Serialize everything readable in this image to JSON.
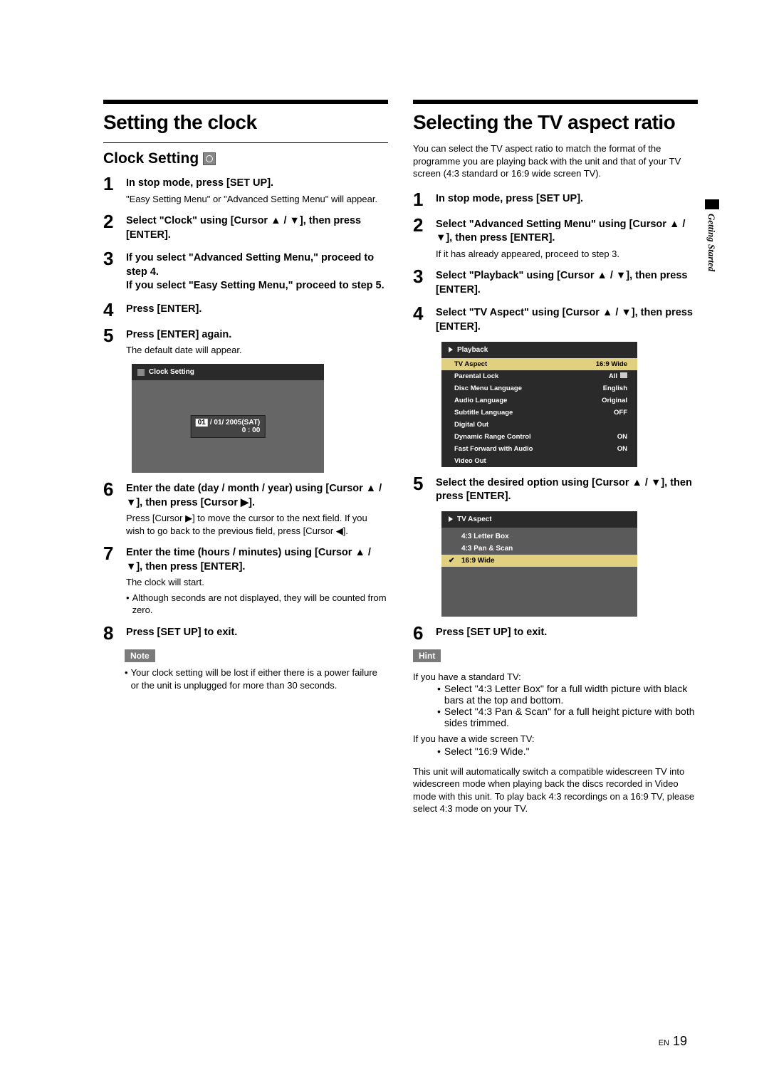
{
  "side_tab": "Getting Started",
  "left": {
    "title": "Setting the clock",
    "subtitle": "Clock Setting",
    "steps": [
      {
        "num": "1",
        "title": "In stop mode, press [SET UP].",
        "text": "\"Easy Setting Menu\" or \"Advanced Setting Menu\" will appear."
      },
      {
        "num": "2",
        "title": "Select \"Clock\" using [Cursor ▲ / ▼], then press [ENTER]."
      },
      {
        "num": "3",
        "title": "If you select \"Advanced Setting Menu,\" proceed to step 4.\nIf you select \"Easy Setting Menu,\" proceed to step 5."
      },
      {
        "num": "4",
        "title": "Press [ENTER]."
      },
      {
        "num": "5",
        "title": "Press [ENTER] again.",
        "text": "The default date will appear."
      },
      {
        "num": "6",
        "title": "Enter the date (day / month / year) using [Cursor ▲ / ▼], then press [Cursor ▶].",
        "text": "Press [Cursor ▶] to move the cursor to the next field. If you wish to go back to the previous field, press [Cursor ◀]."
      },
      {
        "num": "7",
        "title": "Enter the time (hours / minutes) using [Cursor ▲ / ▼], then press [ENTER].",
        "text": "The clock will start.",
        "bullets": [
          "Although seconds are not displayed, they will be counted from zero."
        ]
      },
      {
        "num": "8",
        "title": "Press [SET UP] to exit."
      }
    ],
    "clock_menu": {
      "title": "Clock Setting",
      "day": "01",
      "rest": "/ 01/ 2005(SAT)",
      "time": "0 : 00"
    },
    "note": {
      "tag": "Note",
      "bullets": [
        "Your clock setting will be lost if either there is a power failure or the unit is unplugged for more than 30 seconds."
      ]
    }
  },
  "right": {
    "title": "Selecting the TV aspect ratio",
    "intro": "You can select the TV aspect ratio to match the format of the programme you are playing back with the unit and that of your TV screen (4:3 standard or 16:9 wide screen TV).",
    "steps": [
      {
        "num": "1",
        "title": "In stop mode, press [SET UP]."
      },
      {
        "num": "2",
        "title": "Select \"Advanced Setting Menu\" using [Cursor ▲ / ▼], then press [ENTER].",
        "text": "If it has already appeared, proceed to step 3."
      },
      {
        "num": "3",
        "title": "Select \"Playback\" using [Cursor ▲ / ▼], then press [ENTER]."
      },
      {
        "num": "4",
        "title": "Select \"TV Aspect\" using [Cursor ▲ / ▼], then press [ENTER]."
      },
      {
        "num": "5",
        "title": "Select the desired option using [Cursor ▲ / ▼], then press [ENTER]."
      },
      {
        "num": "6",
        "title": "Press [SET UP] to exit."
      }
    ],
    "pb_menu": {
      "title": "Playback",
      "rows": [
        {
          "l": "TV Aspect",
          "r": "16:9 Wide",
          "hl": true
        },
        {
          "l": "Parental Lock",
          "r": "All",
          "lock": true
        },
        {
          "l": "Disc Menu Language",
          "r": "English"
        },
        {
          "l": "Audio Language",
          "r": "Original"
        },
        {
          "l": "Subtitle Language",
          "r": "OFF"
        },
        {
          "l": "Digital Out",
          "r": ""
        },
        {
          "l": "Dynamic Range Control",
          "r": "ON"
        },
        {
          "l": "Fast Forward with Audio",
          "r": "ON"
        },
        {
          "l": "Video Out",
          "r": ""
        }
      ]
    },
    "tv_menu": {
      "title": "TV Aspect",
      "items": [
        {
          "l": "4:3 Letter Box"
        },
        {
          "l": "4:3 Pan & Scan"
        },
        {
          "l": "16:9 Wide",
          "sel": true
        }
      ]
    },
    "hint": {
      "tag": "Hint",
      "line1": "If you have a standard TV:",
      "b1": "Select \"4:3 Letter Box\" for a full width picture with black bars at the top and bottom.",
      "b2": "Select \"4:3 Pan & Scan\" for a full height picture with both sides trimmed.",
      "line2": "If you have a wide screen TV:",
      "b3": "Select \"16:9 Wide.\"",
      "final": "This unit will automatically switch a compatible widescreen TV into widescreen mode when playing back the discs recorded in Video mode with this unit. To play back 4:3 recordings on a 16:9 TV, please select 4:3 mode on your TV."
    }
  },
  "page": {
    "en": "EN",
    "num": "19"
  }
}
